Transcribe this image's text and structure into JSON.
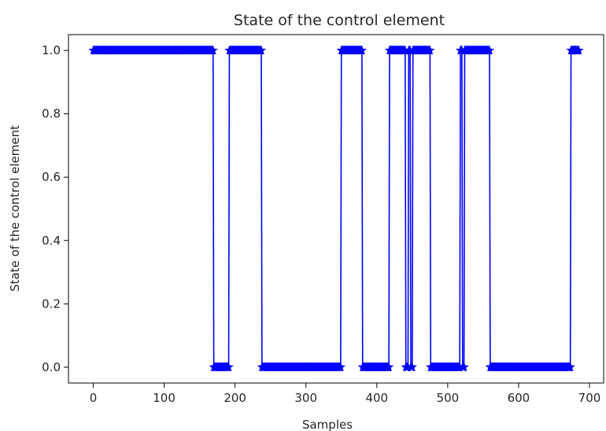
{
  "chart_data": {
    "type": "line",
    "title": "State of the control element",
    "xlabel": "Samples",
    "ylabel": "State of the control element",
    "xlim": [
      -35,
      720
    ],
    "ylim": [
      -0.05,
      1.05
    ],
    "xticks": [
      0,
      100,
      200,
      300,
      400,
      500,
      600,
      700
    ],
    "yticks": [
      0.0,
      0.2,
      0.4,
      0.6,
      0.8,
      1.0
    ],
    "xtick_labels": [
      "0",
      "100",
      "200",
      "300",
      "400",
      "500",
      "600",
      "700"
    ],
    "ytick_labels": [
      "0.0",
      "0.2",
      "0.4",
      "0.6",
      "0.8",
      "1.0"
    ],
    "grid": false,
    "legend": "none",
    "series": [
      {
        "color": "#0000ff",
        "marker": "star",
        "x_range": [
          0,
          685
        ],
        "segments": [
          {
            "start": 0,
            "end": 169,
            "value": 1
          },
          {
            "start": 170,
            "end": 191,
            "value": 0
          },
          {
            "start": 192,
            "end": 237,
            "value": 1
          },
          {
            "start": 238,
            "end": 349,
            "value": 0
          },
          {
            "start": 350,
            "end": 379,
            "value": 1
          },
          {
            "start": 380,
            "end": 417,
            "value": 0
          },
          {
            "start": 418,
            "end": 440,
            "value": 1
          },
          {
            "start": 441,
            "end": 444,
            "value": 0
          },
          {
            "start": 445,
            "end": 447,
            "value": 1
          },
          {
            "start": 448,
            "end": 450,
            "value": 0
          },
          {
            "start": 451,
            "end": 475,
            "value": 1
          },
          {
            "start": 476,
            "end": 517,
            "value": 0
          },
          {
            "start": 518,
            "end": 520,
            "value": 1
          },
          {
            "start": 521,
            "end": 523,
            "value": 0
          },
          {
            "start": 524,
            "end": 559,
            "value": 1
          },
          {
            "start": 560,
            "end": 673,
            "value": 0
          },
          {
            "start": 674,
            "end": 685,
            "value": 1
          }
        ]
      }
    ]
  }
}
